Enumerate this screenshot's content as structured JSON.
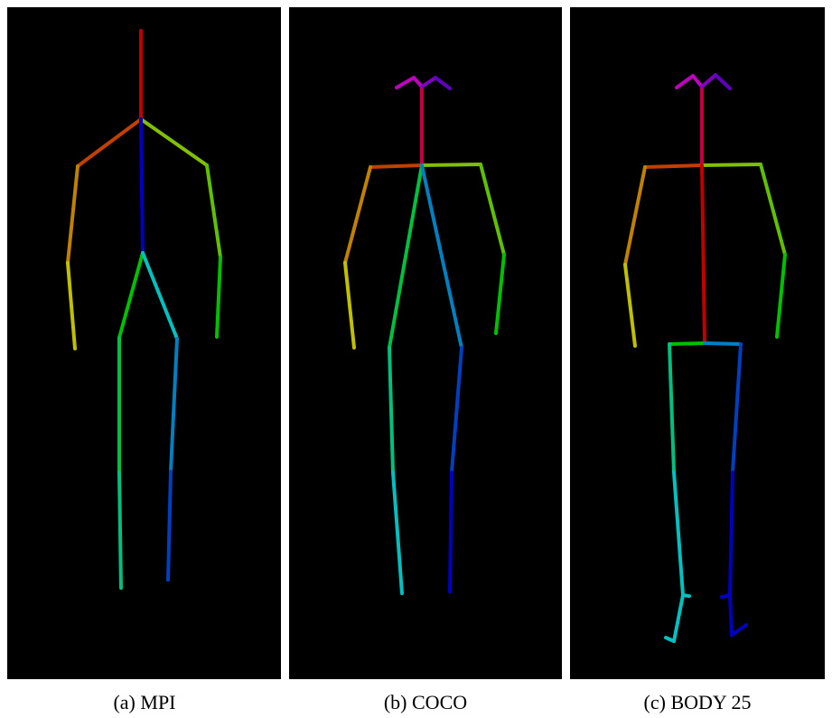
{
  "captions": [
    "(a) MPI",
    "(b) COCO",
    "(c) BODY 25"
  ]
}
